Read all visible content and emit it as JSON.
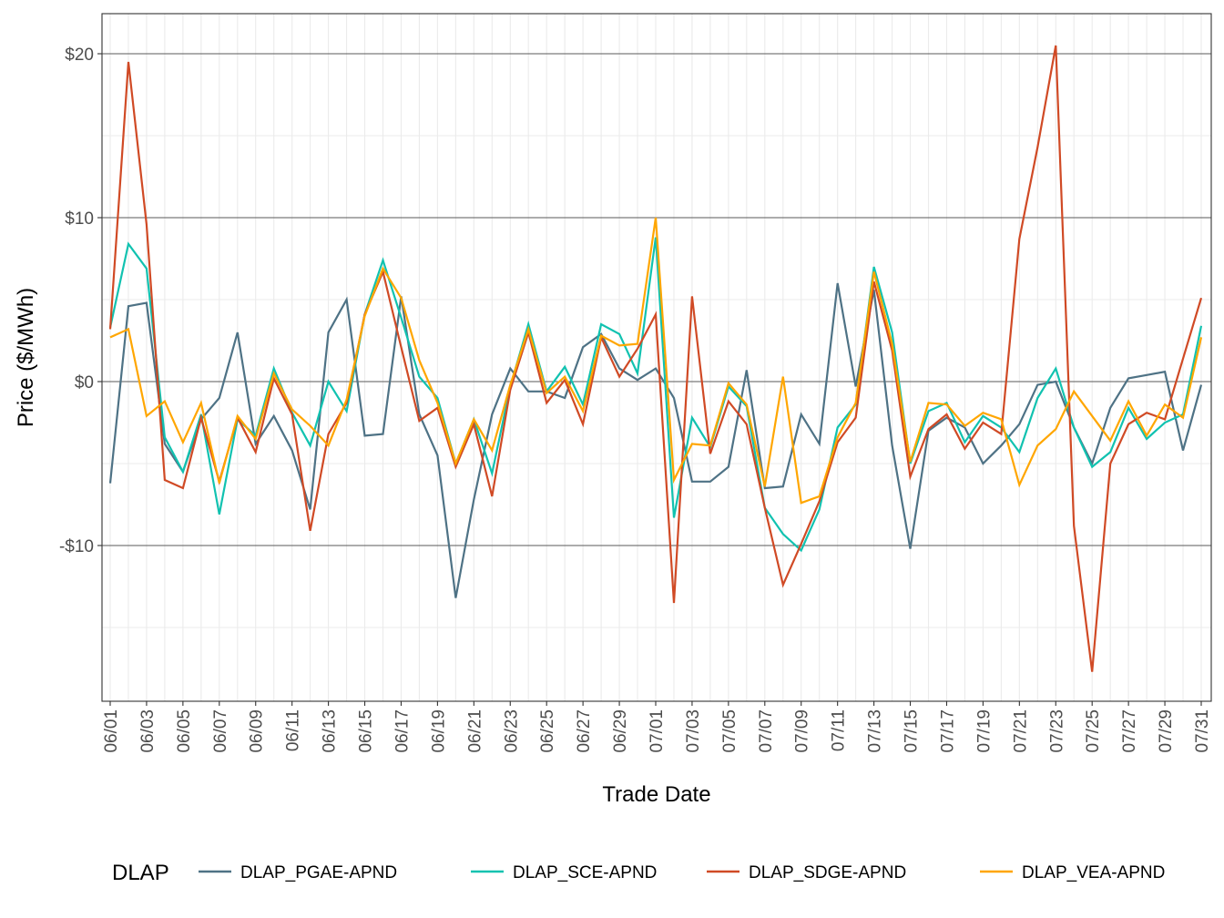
{
  "chart_data": {
    "type": "line",
    "title": "",
    "xlabel": "Trade Date",
    "ylabel": "Price ($/MWh)",
    "ylim": [
      -19,
      22
    ],
    "yticks": [
      -10,
      0,
      10,
      20
    ],
    "ytick_labels": [
      "-$10",
      "$0",
      "$10",
      "$20"
    ],
    "grid": true,
    "legend": {
      "title": "DLAP",
      "position": "bottom"
    },
    "x": [
      "06/01",
      "06/02",
      "06/03",
      "06/04",
      "06/05",
      "06/06",
      "06/07",
      "06/08",
      "06/09",
      "06/10",
      "06/11",
      "06/12",
      "06/13",
      "06/14",
      "06/15",
      "06/16",
      "06/17",
      "06/18",
      "06/19",
      "06/20",
      "06/21",
      "06/22",
      "06/23",
      "06/24",
      "06/25",
      "06/26",
      "06/27",
      "06/28",
      "06/29",
      "06/30",
      "07/01",
      "07/02",
      "07/03",
      "07/04",
      "07/05",
      "07/06",
      "07/07",
      "07/08",
      "07/09",
      "07/10",
      "07/11",
      "07/12",
      "07/13",
      "07/14",
      "07/15",
      "07/16",
      "07/17",
      "07/18",
      "07/19",
      "07/20",
      "07/21",
      "07/22",
      "07/23",
      "07/24",
      "07/25",
      "07/26",
      "07/27",
      "07/28",
      "07/29",
      "07/30",
      "07/31"
    ],
    "xtick_labels": [
      "06/01",
      "06/03",
      "06/05",
      "06/07",
      "06/09",
      "06/11",
      "06/13",
      "06/15",
      "06/17",
      "06/19",
      "06/21",
      "06/23",
      "06/25",
      "06/27",
      "06/29",
      "07/01",
      "07/03",
      "07/05",
      "07/07",
      "07/09",
      "07/11",
      "07/13",
      "07/15",
      "07/17",
      "07/19",
      "07/21",
      "07/23",
      "07/25",
      "07/27",
      "07/29",
      "07/31"
    ],
    "series": [
      {
        "name": "DLAP_PGAE-APND",
        "color": "#4e7285",
        "values": [
          -6.2,
          4.6,
          4.8,
          -3.8,
          -5.5,
          -2.3,
          -1.0,
          3.0,
          -3.8,
          -2.1,
          -4.2,
          -7.8,
          3.0,
          5.0,
          -3.3,
          -3.2,
          5.2,
          -2.0,
          -4.5,
          -13.2,
          -7.2,
          -2.0,
          0.8,
          -0.6,
          -0.6,
          -1.0,
          2.1,
          2.9,
          0.8,
          0.1,
          0.8,
          -1.0,
          -6.1,
          -6.1,
          -5.2,
          0.7,
          -6.5,
          -6.4,
          -2.0,
          -3.8,
          6.0,
          -0.3,
          5.6,
          -3.9,
          -10.2,
          -3.0,
          -2.2,
          -2.8,
          -5.0,
          -3.9,
          -2.6,
          -0.2,
          0.0,
          -2.8,
          -5.0,
          -1.6,
          0.2,
          0.4,
          0.6,
          -4.2,
          -0.2
        ]
      },
      {
        "name": "DLAP_SCE-APND",
        "color": "#11c2b0",
        "values": [
          3.3,
          8.4,
          6.9,
          -3.4,
          -5.5,
          -2.0,
          -8.1,
          -2.3,
          -3.3,
          0.8,
          -1.9,
          -3.9,
          0.0,
          -1.8,
          4.1,
          7.4,
          3.9,
          0.3,
          -1.0,
          -5.0,
          -2.3,
          -5.6,
          -0.3,
          3.5,
          -0.6,
          0.9,
          -1.4,
          3.5,
          2.9,
          0.5,
          8.8,
          -8.3,
          -2.2,
          -4.0,
          -0.3,
          -1.5,
          -7.7,
          -9.3,
          -10.3,
          -7.8,
          -2.8,
          -1.4,
          7.0,
          3.0,
          -5.0,
          -1.8,
          -1.3,
          -3.7,
          -2.1,
          -2.8,
          -4.3,
          -1.0,
          0.8,
          -2.8,
          -5.2,
          -4.3,
          -1.6,
          -3.5,
          -2.5,
          -2.0,
          3.4
        ]
      },
      {
        "name": "DLAP_SDGE-APND",
        "color": "#d04a25",
        "values": [
          3.2,
          19.5,
          9.6,
          -6.0,
          -6.5,
          -2.2,
          -6.1,
          -2.2,
          -4.3,
          0.2,
          -2.0,
          -9.1,
          -3.2,
          -1.3,
          4.1,
          6.7,
          2.1,
          -2.4,
          -1.6,
          -5.2,
          -2.6,
          -7.0,
          -0.5,
          3.0,
          -1.3,
          0.1,
          -2.6,
          2.7,
          0.3,
          2.0,
          4.1,
          -13.5,
          5.2,
          -4.4,
          -1.2,
          -2.6,
          -7.7,
          -12.4,
          -9.9,
          -7.3,
          -3.7,
          -2.2,
          6.1,
          1.9,
          -5.8,
          -2.9,
          -2.0,
          -4.1,
          -2.5,
          -3.2,
          8.7,
          14.3,
          20.5,
          -8.8,
          -17.7,
          -5.0,
          -2.6,
          -1.9,
          -2.3,
          1.4,
          5.1
        ]
      },
      {
        "name": "DLAP_VEA-APND",
        "color": "#ffa600",
        "values": [
          2.7,
          3.2,
          -2.1,
          -1.2,
          -3.7,
          -1.3,
          -6.2,
          -2.1,
          -3.5,
          0.5,
          -1.7,
          -2.7,
          -3.9,
          -1.1,
          4.0,
          6.9,
          5.1,
          1.3,
          -1.3,
          -5.0,
          -2.3,
          -4.2,
          -0.2,
          3.2,
          -0.7,
          0.3,
          -1.8,
          2.8,
          2.2,
          2.3,
          10.0,
          -6.0,
          -3.8,
          -3.9,
          -0.1,
          -1.4,
          -6.4,
          0.3,
          -7.4,
          -7.0,
          -3.4,
          -1.3,
          6.7,
          2.3,
          -4.9,
          -1.3,
          -1.4,
          -2.7,
          -1.9,
          -2.3,
          -6.3,
          -3.9,
          -2.9,
          -0.6,
          -2.1,
          -3.6,
          -1.2,
          -3.3,
          -1.4,
          -2.2,
          2.7
        ]
      }
    ]
  }
}
